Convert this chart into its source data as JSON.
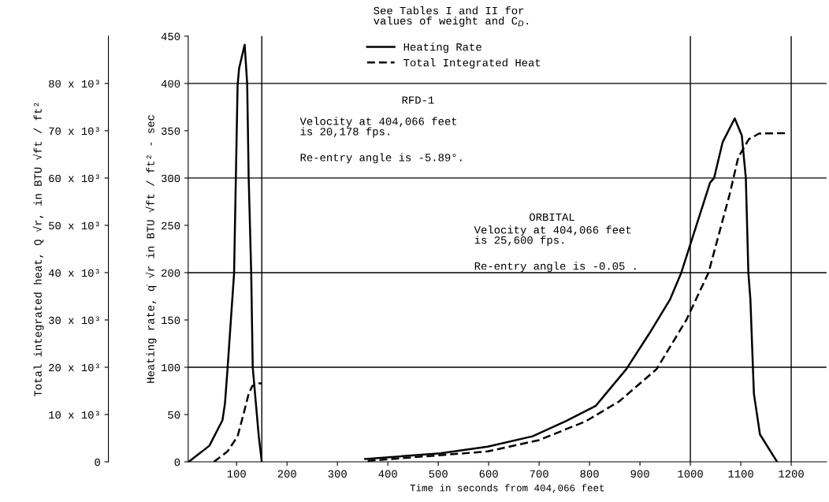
{
  "chart_data": {
    "type": "line",
    "xlabel": "Time in seconds from 404,066 feet",
    "ylabel": "Heating rate, q̇ √r in BTU √ft / ft² - sec",
    "y2label": "Total integrated heat, Q √r, in BTU √ft / ft²",
    "xlim": [
      4,
      1270
    ],
    "xticks": [
      100,
      200,
      300,
      400,
      500,
      600,
      700,
      800,
      900,
      1000,
      1100,
      1200
    ],
    "ylim": [
      0,
      450
    ],
    "yticks": [
      0,
      50,
      100,
      150,
      200,
      250,
      300,
      350,
      400,
      450
    ],
    "y2lim": [
      0,
      90000
    ],
    "y2ticks": [
      {
        "value": 0,
        "label": "0"
      },
      {
        "value": 10000,
        "label": "10 x 10³"
      },
      {
        "value": 20000,
        "label": "20 x 10³"
      },
      {
        "value": 30000,
        "label": "30 x 10³"
      },
      {
        "value": 40000,
        "label": "40 x 10³"
      },
      {
        "value": 50000,
        "label": "50 x 10³"
      },
      {
        "value": 60000,
        "label": "60 x 10³"
      },
      {
        "value": 70000,
        "label": "70 x 10³"
      },
      {
        "value": 80000,
        "label": "80 x 10³"
      }
    ],
    "series": [
      {
        "name": "Heating Rate",
        "color": "#000000",
        "line_style": "solid",
        "x": [
          5,
          46,
          72,
          77,
          82,
          95,
          102,
          105,
          116,
          121,
          124,
          129,
          132,
          144,
          150
        ],
        "values": [
          0,
          17,
          44,
          62,
          98,
          199,
          398,
          416,
          441,
          400,
          300,
          200,
          100,
          27,
          0
        ]
      },
      {
        "name": "Total Integrated Heat",
        "color": "#000000",
        "line_style": "dashed",
        "axis": "y2",
        "x": [
          55,
          82,
          102,
          113,
          124,
          131,
          144,
          150
        ],
        "values": [
          0,
          2200,
          5400,
          9800,
          14400,
          16000,
          16600,
          16600
        ]
      },
      {
        "color": "#000000",
        "line_style": "solid",
        "x": [
          355,
          504,
          598,
          687,
          753,
          812,
          873,
          919,
          960,
          982,
          1039,
          1047,
          1064,
          1088,
          1102,
          1110,
          1115,
          1119,
          1126,
          1138,
          1172
        ],
        "values": [
          3,
          9,
          16,
          27,
          43,
          59,
          98,
          136,
          172,
          200,
          295,
          300,
          338,
          363,
          345,
          300,
          200,
          172,
          72,
          29,
          0
        ]
      },
      {
        "color": "#000000",
        "line_style": "dashed",
        "axis": "y2",
        "x": [
          360,
          598,
          700,
          793,
          859,
          933,
          992,
          1036,
          1078,
          1095,
          1116,
          1136,
          1188
        ],
        "values": [
          200,
          2200,
          4600,
          8600,
          12800,
          19600,
          30000,
          40000,
          56600,
          64400,
          68200,
          69400,
          69500
        ]
      }
    ],
    "ref_lines": [
      {
        "axis": "y",
        "value": 100,
        "color": "#000000"
      },
      {
        "axis": "y",
        "value": 200,
        "color": "#000000"
      },
      {
        "axis": "y",
        "value": 300,
        "color": "#000000"
      },
      {
        "axis": "y",
        "value": 400,
        "color": "#000000"
      },
      {
        "axis": "x",
        "value": 150,
        "color": "#000000"
      },
      {
        "axis": "x",
        "value": 1000,
        "color": "#000000"
      },
      {
        "axis": "x",
        "value": 1200,
        "color": "#000000"
      }
    ],
    "legend": "top",
    "annotations": [
      "See Tables I and II for\nvalues of weight and C$_{D}$.",
      "RFD-1",
      "Velocity at 404,066 feet\nis 20,178 fps.",
      "Re-entry angle is -5.89°.",
      "ORBITAL",
      "Velocity at 404,066 feet\nis 25,600 fps.",
      "Re-entry angle is -0.05 ."
    ]
  }
}
